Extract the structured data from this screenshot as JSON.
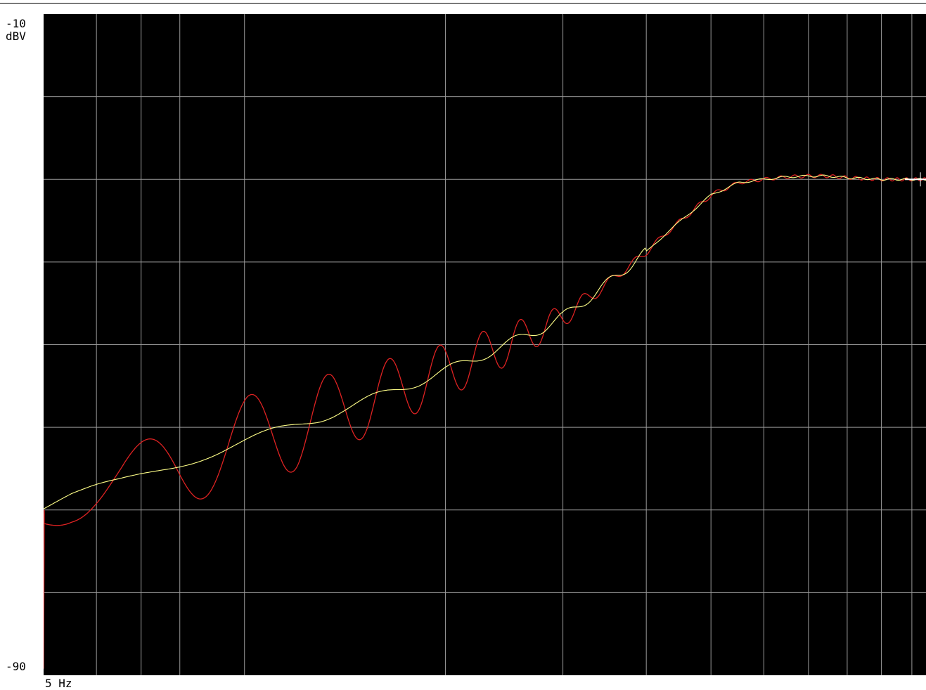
{
  "chart_data": {
    "type": "line",
    "title": "",
    "ylabel": "dBV",
    "xlabel": "Hz",
    "x_scale": "log",
    "y_max_label": "-10",
    "y_min_label": "-90",
    "x_start_label": "5 Hz",
    "ylim": [
      -90,
      -10
    ],
    "xlim": [
      5,
      105
    ],
    "grid": true,
    "y_grid_step": 10,
    "x_grid": [
      6,
      7,
      8,
      10,
      20,
      30,
      40,
      50,
      60,
      70,
      80,
      90,
      100
    ],
    "background": "#000000",
    "grid_color": "#9a9a9a",
    "marker_at": [
      103,
      -30
    ],
    "series": [
      {
        "color": "#dd2222",
        "style": "ripple",
        "x": [
          5,
          5.5,
          6,
          6.5,
          7,
          7.5,
          8,
          9,
          10,
          11,
          12,
          13,
          14,
          15,
          16,
          18,
          20,
          22,
          25,
          28,
          30,
          33,
          36,
          40,
          43,
          46,
          50,
          55,
          60,
          65,
          70,
          75,
          80,
          90,
          100,
          105
        ],
        "y": [
          -70,
          -68.5,
          -67.5,
          -66.7,
          -65.8,
          -65,
          -64.3,
          -63,
          -61.8,
          -60.7,
          -59.7,
          -58.8,
          -57.8,
          -57,
          -56.2,
          -54.6,
          -53.2,
          -51.8,
          -49.8,
          -48,
          -46.6,
          -44.2,
          -41.8,
          -38.8,
          -36.4,
          -34.4,
          -31.9,
          -30.4,
          -30,
          -29.7,
          -29.6,
          -29.6,
          -29.8,
          -30,
          -30,
          -30
        ],
        "ripple_db": [
          3,
          3,
          3.2,
          3.5,
          4,
          4.5,
          5,
          5.3,
          5.5,
          5.5,
          5.5,
          5,
          4.6,
          4.4,
          4.2,
          3.8,
          3.3,
          3,
          2.5,
          1.8,
          1.4,
          0.8,
          0.5,
          0.4,
          0.3,
          0.3,
          0.3,
          0.2,
          0.2,
          0.2,
          0.2,
          0.2,
          0.2,
          0.2,
          0.2,
          0.2
        ]
      },
      {
        "color": "#ffff88",
        "style": "smooth",
        "x": [
          5,
          5.5,
          6,
          6.5,
          7,
          7.5,
          8,
          9,
          10,
          11,
          12,
          13,
          14,
          15,
          16,
          18,
          20,
          22,
          25,
          28,
          30,
          33,
          36,
          40,
          43,
          46,
          50,
          55,
          60,
          65,
          70,
          75,
          80,
          90,
          100,
          105
        ],
        "y": [
          -70,
          -68.5,
          -67.5,
          -66.7,
          -65.8,
          -65,
          -64.3,
          -63,
          -61.8,
          -60.7,
          -59.7,
          -58.8,
          -57.8,
          -57,
          -56.2,
          -54.6,
          -53.2,
          -51.8,
          -49.8,
          -48,
          -46.6,
          -44.2,
          -41.8,
          -38.8,
          -36.4,
          -34.4,
          -31.9,
          -30.4,
          -30,
          -29.7,
          -29.6,
          -29.6,
          -29.8,
          -30,
          -30,
          -30
        ]
      }
    ]
  }
}
